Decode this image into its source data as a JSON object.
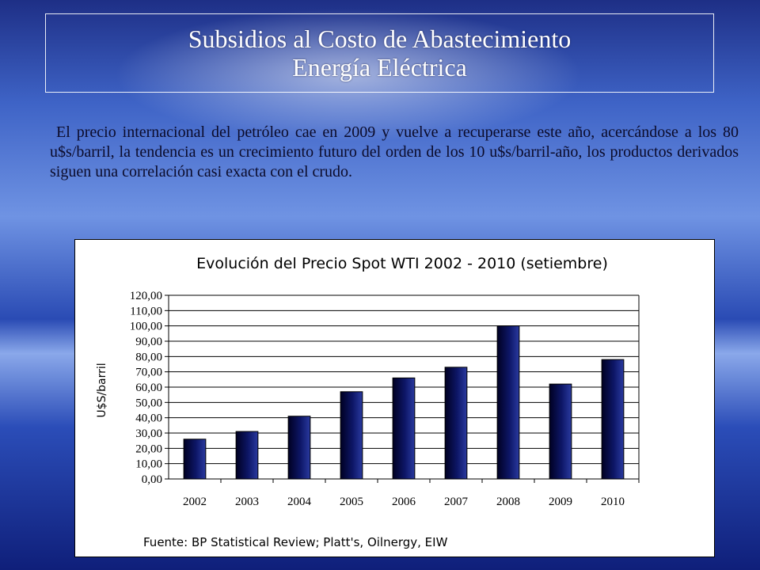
{
  "slide": {
    "title_line1": "Subsidios al Costo de Abastecimiento",
    "title_line2": "Energía Eléctrica",
    "paragraph": "El precio internacional del petróleo cae en 2009 y vuelve a recuperarse este año, acercándose a los 80 u$s/barril, la tendencia es un crecimiento futuro del orden de los 10 u$s/barril-año, los productos derivados siguen una correlación casi exacta con el crudo."
  },
  "chart_data": {
    "type": "bar",
    "title": "Evolución del Precio Spot WTI 2002 - 2010 (setiembre)",
    "ylabel": "U$S/barril",
    "xlabel": "",
    "categories": [
      "2002",
      "2003",
      "2004",
      "2005",
      "2006",
      "2007",
      "2008",
      "2009",
      "2010"
    ],
    "values": [
      26,
      31,
      41,
      57,
      66,
      73,
      100,
      62,
      78
    ],
    "ylim": [
      0,
      120
    ],
    "yticks": [
      "0,00",
      "10,00",
      "20,00",
      "30,00",
      "40,00",
      "50,00",
      "60,00",
      "70,00",
      "80,00",
      "90,00",
      "100,00",
      "110,00",
      "120,00"
    ],
    "grid": true,
    "source": "Fuente: BP Statistical Review; Platt's, Oilnergy, EIW",
    "colors": {
      "bar_dark": "#000033",
      "bar_light": "#1a2a8a",
      "grid": "#000000"
    }
  }
}
